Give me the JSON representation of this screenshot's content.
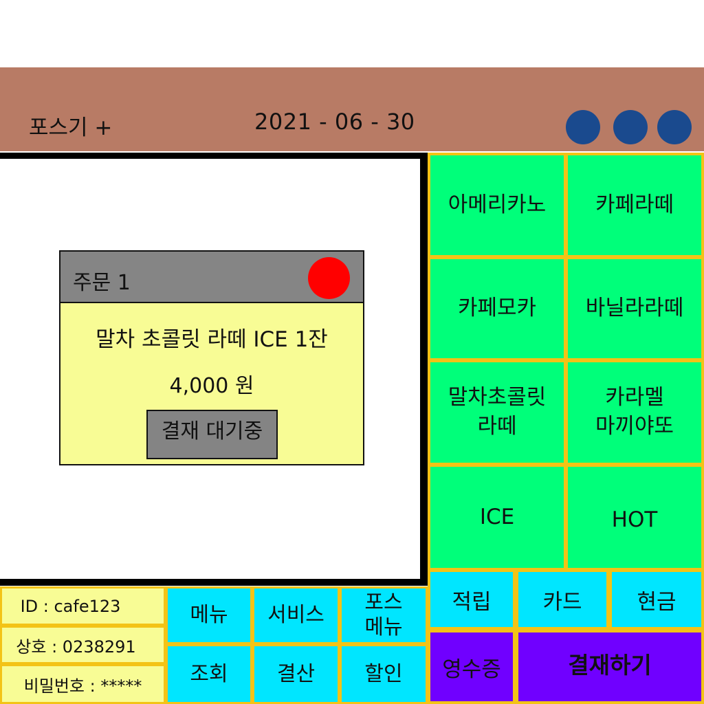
{
  "header": {
    "title": "포스기 +",
    "date": "2021 - 06 - 30"
  },
  "order": {
    "title": "주문 1",
    "item": "말차 초콜릿 라떼 ICE 1잔",
    "price": "4,000 원",
    "status": "결재 대기중"
  },
  "menu": {
    "americano": "아메리카노",
    "cafe_latte": "카페라떼",
    "cafe_mocha": "카페모카",
    "vanilla_latte": "바닐라라떼",
    "matcha_line1": "말차초콜릿",
    "matcha_line2": "라떼",
    "caramel_line1": "카라멜",
    "caramel_line2": "마끼야또",
    "ice": "ICE",
    "hot": "HOT"
  },
  "payment": {
    "points": "적립",
    "card": "카드",
    "cash": "현금",
    "receipt": "영수증",
    "pay": "결재하기"
  },
  "info": {
    "id": "ID : cafe123",
    "business": "상호 : 0238291",
    "password": "비밀번호 : *****"
  },
  "functions": {
    "menu": "메뉴",
    "service": "서비스",
    "pos_menu_line1": "포스",
    "pos_menu_line2": "메뉴",
    "lookup": "조회",
    "settlement": "결산",
    "discount": "할인"
  },
  "colors": {
    "header": "#b87b65",
    "menu_button": "#00ff7a",
    "action_button": "#00e6ff",
    "pay_button": "#7000ff",
    "grid_border": "#f3c316",
    "order_card": "#f8fc95",
    "status_dot": "#ff0000",
    "window_dot": "#1a4a8e"
  }
}
